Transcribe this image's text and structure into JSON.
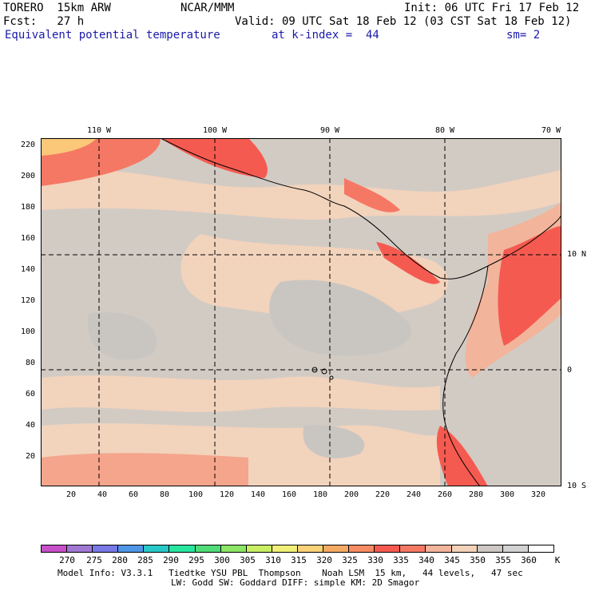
{
  "header": {
    "model": "TORERO  15km ARW",
    "org": "NCAR/MMM",
    "init": "Init: 06 UTC Fri 17 Feb 12",
    "fcst": "Fcst:   27 h",
    "valid": "Valid: 09 UTC Sat 18 Feb 12 (03 CST Sat 18 Feb 12)",
    "field": "Equivalent potential temperature",
    "level": "at k-index =  44",
    "smooth": "sm= 2"
  },
  "map": {
    "lon_labels": [
      "110 W",
      "100 W",
      "90 W",
      "80 W",
      "70 W"
    ],
    "lat_labels": [
      "10 N",
      "0",
      "10 S"
    ],
    "y_ticks": [
      "220",
      "200",
      "180",
      "160",
      "140",
      "120",
      "100",
      "80",
      "60",
      "40",
      "20"
    ],
    "x_ticks": [
      "20",
      "40",
      "60",
      "80",
      "100",
      "120",
      "140",
      "160",
      "180",
      "200",
      "220",
      "240",
      "260",
      "280",
      "300",
      "320"
    ]
  },
  "legend": {
    "labels": [
      "270",
      "275",
      "280",
      "285",
      "290",
      "295",
      "300",
      "305",
      "310",
      "315",
      "320",
      "325",
      "330",
      "335",
      "340",
      "345",
      "350",
      "355",
      "360"
    ],
    "unit": "K",
    "colors": [
      "#c850c8",
      "#a078d2",
      "#7878e6",
      "#5096e6",
      "#28c8c8",
      "#28e6a0",
      "#50dc78",
      "#8ce664",
      "#c8ee64",
      "#f0f078",
      "#fad278",
      "#f5aa64",
      "#f78c64",
      "#f55a50",
      "#f57864",
      "#f2b49a",
      "#f2d2b9",
      "#cdc8c3",
      "#d2d2d2",
      "#ffffff"
    ]
  },
  "footer": {
    "line1": "Model Info: V3.3.1   Tiedtke YSU PBL  Thompson    Noah LSM  15 km,   44 levels,   47 sec",
    "line2": "LW: Godd SW: Goddard DIFF: simple KM: 2D Smagor"
  }
}
